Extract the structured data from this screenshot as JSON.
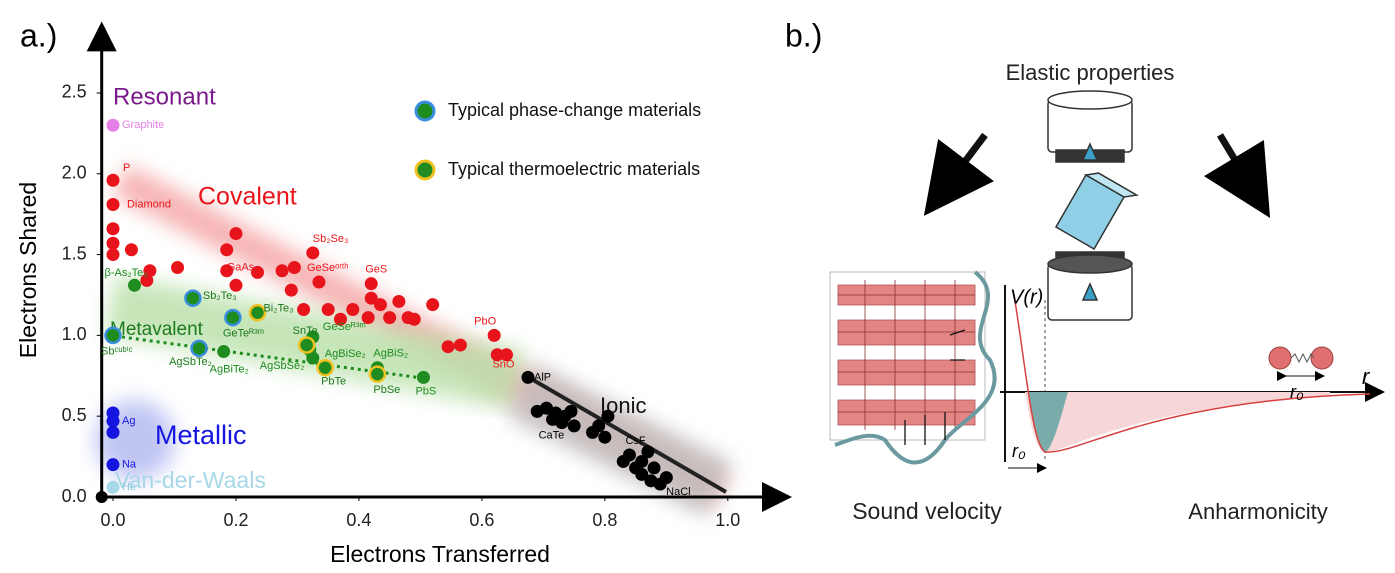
{
  "chart_data": {
    "type": "scatter",
    "panel_label": "a.)",
    "x_label": "Electrons Transferred",
    "y_label": "Electrons Shared",
    "xlim": [
      -0.02,
      1.08
    ],
    "ylim": [
      0,
      2.85
    ],
    "xticks": [
      {
        "value": 0,
        "label": "0.0"
      },
      0.2,
      0.4,
      0.6,
      0.8,
      {
        "value": 1,
        "label": "1.0"
      }
    ],
    "yticks": [
      {
        "value": 0,
        "label": "0.0"
      },
      0.5,
      {
        "value": 1,
        "label": "1.0"
      },
      1.5,
      {
        "value": 2,
        "label": "2.0"
      },
      2.5
    ],
    "legend": "upper right",
    "series": [
      {
        "name": "Covalent",
        "color": "#e8141c",
        "x": [
          0,
          0,
          0,
          0,
          0,
          0.03,
          0.055,
          0.06,
          0.105,
          0.2,
          0.185,
          0.185,
          0.235,
          0.2,
          0.275,
          0.295,
          0.29,
          0.325,
          0.335,
          0.31,
          0.35,
          0.39,
          0.37,
          0.42,
          0.42,
          0.435,
          0.415,
          0.45,
          0.465,
          0.48,
          0.52,
          0.49,
          0.62,
          0.565,
          0.545,
          0.625,
          0.64
        ],
        "y": [
          1.96,
          1.81,
          1.66,
          1.57,
          1.5,
          1.53,
          1.34,
          1.4,
          1.42,
          1.63,
          1.53,
          1.4,
          1.39,
          1.31,
          1.4,
          1.42,
          1.28,
          1.51,
          1.33,
          1.16,
          1.16,
          1.16,
          1.1,
          1.32,
          1.23,
          1.19,
          1.11,
          1.11,
          1.21,
          1.11,
          1.19,
          1.1,
          1.0,
          0.94,
          0.93,
          0.88,
          0.88
        ],
        "labels": [
          "P",
          "Diamond",
          null,
          null,
          null,
          null,
          null,
          null,
          null,
          null,
          "GaAs",
          null,
          null,
          null,
          null,
          null,
          null,
          "Sb₂Se₃",
          "GeSeᵒʳᵗʰ",
          null,
          null,
          null,
          null,
          "GeS",
          null,
          null,
          null,
          null,
          null,
          null,
          null,
          null,
          "PbO",
          null,
          null,
          null,
          "SnO"
        ]
      },
      {
        "name": "Metavalent",
        "color": "#1e8c1e",
        "x": [
          0.035,
          0.18,
          0.325,
          0.32,
          0.325,
          0.43,
          0.505
        ],
        "y": [
          1.31,
          0.9,
          0.99,
          0.91,
          0.86,
          0.8,
          0.74
        ],
        "labels": [
          "β-As₂Te₃",
          "AgBiTe₂",
          "GeSeᴿ³ᵐ",
          "AgSbSe₂",
          "AgBiSe₂",
          "AgBiS₂",
          "PbS"
        ]
      },
      {
        "name": "Ionic",
        "color": "#000000",
        "x": [
          0.675,
          0.69,
          0.705,
          0.715,
          0.72,
          0.73,
          0.735,
          0.745,
          0.75,
          0.78,
          0.79,
          0.8,
          0.805,
          0.83,
          0.84,
          0.85,
          0.86,
          0.86,
          0.87,
          0.875,
          0.88,
          0.89,
          0.9
        ],
        "y": [
          0.74,
          0.53,
          0.55,
          0.48,
          0.52,
          0.46,
          0.5,
          0.53,
          0.44,
          0.4,
          0.44,
          0.37,
          0.5,
          0.22,
          0.26,
          0.18,
          0.22,
          0.14,
          0.28,
          0.1,
          0.18,
          0.08,
          0.12
        ],
        "labels": [
          "AlP",
          null,
          null,
          "CaTe",
          null,
          null,
          null,
          null,
          null,
          null,
          null,
          null,
          null,
          null,
          "CsF",
          null,
          null,
          null,
          null,
          null,
          null,
          "NaCl",
          null
        ]
      },
      {
        "name": "Metallic",
        "color": "#1515e0",
        "x": [
          0,
          0,
          0,
          0
        ],
        "y": [
          0.52,
          0.47,
          0.4,
          0.2
        ],
        "labels": [
          null,
          "Ag",
          null,
          "Na"
        ]
      },
      {
        "name": "Van-der-Waals",
        "color": "#a8d8e8",
        "x": [
          0
        ],
        "y": [
          0.06
        ],
        "labels": [
          "He"
        ]
      },
      {
        "name": "Resonant",
        "color": "#e680e6",
        "x": [
          0
        ],
        "y": [
          2.3
        ],
        "labels": [
          "Graphite"
        ]
      },
      {
        "name": "Typical phase-change materials",
        "color": "#1e8c1e",
        "edge_color": "#3a8ee0",
        "x": [
          0,
          0.13,
          0.195,
          0.14
        ],
        "y": [
          1.0,
          1.23,
          1.11,
          0.92
        ],
        "labels": [
          "Sbᶜᵘᵇⁱᶜ",
          "Sb₂Te₃",
          "GeTeᴿ³ᵐ",
          "AgSbTe₂"
        ]
      },
      {
        "name": "Typical thermoelectric materials",
        "color": "#1e8c1e",
        "edge_color": "#f0c020",
        "x": [
          0.235,
          0.315,
          0.345,
          0.43
        ],
        "y": [
          1.14,
          0.94,
          0.8,
          0.76
        ],
        "labels": [
          "Bi₂Te₃",
          "SnTe",
          "PbTe",
          "PbSe"
        ]
      }
    ]
  },
  "panel_b": {
    "label": "b.)",
    "title": "Elastic properties",
    "left_caption": "Sound velocity",
    "right_caption": "Anharmonicity",
    "potential_label": "V(r)",
    "distance_label": "r",
    "equilibrium_label": "r₀"
  }
}
